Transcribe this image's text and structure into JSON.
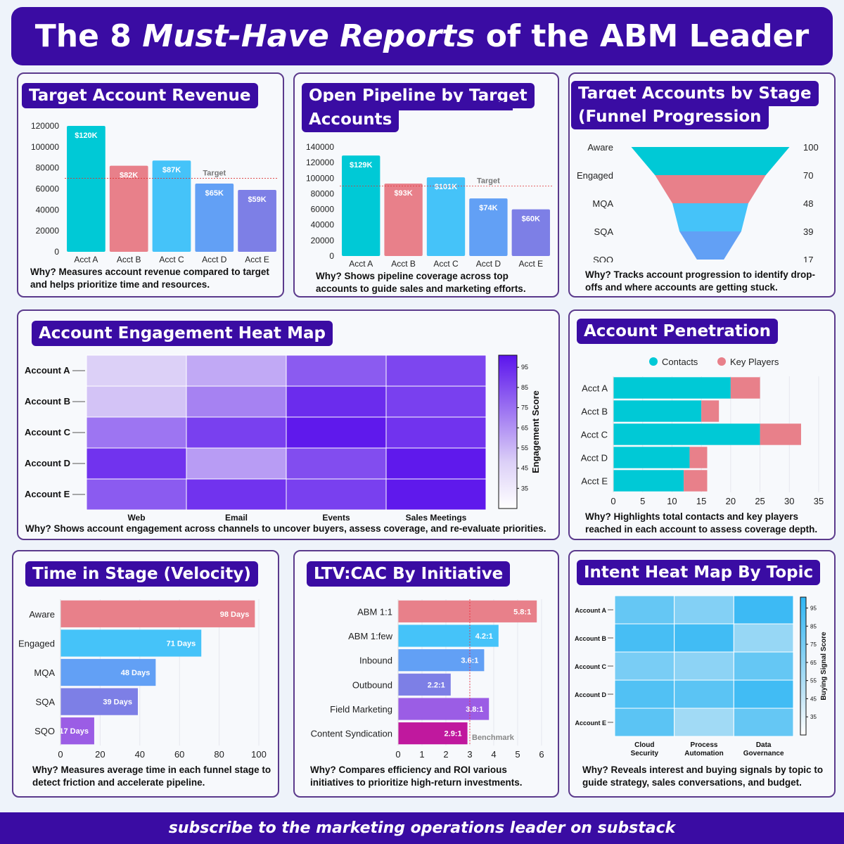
{
  "header": {
    "title_pre": "The 8 ",
    "title_em": "Must-Have Reports",
    "title_post": " of the ABM Leader"
  },
  "footer": {
    "text": "subscribe to the marketing operations leader on substack"
  },
  "colors": {
    "brand": "#3a0ca3",
    "teal": "#00c9d6",
    "pink": "#e8808a",
    "sky": "#45c3f9",
    "blue": "#62a0f5",
    "periwinkle": "#7d7fe6",
    "purple": "#9b5de5",
    "magenta": "#c0189e"
  },
  "panels": {
    "revenue": {
      "title": "Target Account Revenue",
      "why": "Why? Measures account revenue compared to target and helps prioritize time and resources."
    },
    "pipeline": {
      "title_line1": "Open Pipeline by Target",
      "title_line2": "Accounts",
      "why": "Why? Shows pipeline coverage across top accounts to guide sales and marketing efforts."
    },
    "funnel": {
      "title_line1": "Target Accounts by Stage",
      "title_line2": "(Funnel Progression",
      "why": "Why? Tracks account progression to identify drop-offs and where accounts are getting stuck."
    },
    "engagement": {
      "title": "Account Engagement Heat Map",
      "why": "Why? Shows account engagement across channels to uncover buyers, assess coverage, and re-evaluate priorities."
    },
    "penetration": {
      "title": "Account Penetration",
      "why": "Why? Highlights total contacts and key players reached in each account to assess coverage depth."
    },
    "velocity": {
      "title": "Time in Stage (Velocity)",
      "why": "Why? Measures average time in each funnel stage to detect friction and accelerate pipeline."
    },
    "ltvcac": {
      "title": "LTV:CAC By Initiative",
      "why": "Why? Compares efficiency and ROI various initiatives to prioritize high-return investments."
    },
    "intent": {
      "title": "Intent Heat Map By Topic",
      "why": "Why? Reveals interest and buying signals by topic to guide strategy, sales conversations, and budget."
    }
  },
  "chart_data": [
    {
      "id": "revenue",
      "type": "bar",
      "categories": [
        "Acct A",
        "Acct B",
        "Acct C",
        "Acct D",
        "Acct E"
      ],
      "values": [
        120000,
        82000,
        87000,
        65000,
        59000
      ],
      "data_labels": [
        "$120K",
        "$82K",
        "$87K",
        "$65K",
        "$59K"
      ],
      "colors": [
        "#00c9d6",
        "#e8808a",
        "#45c3f9",
        "#62a0f5",
        "#7d7fe6"
      ],
      "ylim": [
        0,
        120000
      ],
      "yticks": [
        0,
        20000,
        40000,
        60000,
        80000,
        100000,
        120000
      ],
      "target": 70000,
      "target_label": "Target"
    },
    {
      "id": "pipeline",
      "type": "bar",
      "categories": [
        "Acct A",
        "Acct B",
        "Acct C",
        "Acct D",
        "Acct E"
      ],
      "values": [
        129000,
        93000,
        101000,
        74000,
        60000
      ],
      "data_labels": [
        "$129K",
        "$93K",
        "$101K",
        "$74K",
        "$60K"
      ],
      "colors": [
        "#00c9d6",
        "#e8808a",
        "#45c3f9",
        "#62a0f5",
        "#7d7fe6"
      ],
      "ylim": [
        0,
        140000
      ],
      "yticks": [
        0,
        20000,
        40000,
        60000,
        80000,
        100000,
        120000,
        140000
      ],
      "target": 90000,
      "target_label": "Target"
    },
    {
      "id": "funnel",
      "type": "funnel",
      "stages": [
        "Aware",
        "Engaged",
        "MQA",
        "SQA",
        "SQO"
      ],
      "values": [
        100,
        70,
        48,
        39,
        17
      ],
      "colors": [
        "#00c9d6",
        "#e8808a",
        "#45c3f9",
        "#62a0f5"
      ]
    },
    {
      "id": "engagement",
      "type": "heatmap",
      "rows": [
        "Account A",
        "Account B",
        "Account C",
        "Account D",
        "Account E"
      ],
      "columns": [
        "Web",
        "Email",
        "Events",
        "Sales Meetings"
      ],
      "values": [
        [
          25,
          40,
          70,
          78
        ],
        [
          30,
          55,
          88,
          80
        ],
        [
          60,
          80,
          95,
          85
        ],
        [
          85,
          45,
          75,
          95
        ],
        [
          70,
          85,
          80,
          95
        ]
      ],
      "scale_ticks": [
        95,
        85,
        75,
        65,
        55,
        45,
        35
      ],
      "scale_label": "Engagement Score"
    },
    {
      "id": "penetration",
      "type": "bar",
      "orientation": "horizontal",
      "stacked": true,
      "categories": [
        "Acct A",
        "Acct B",
        "Acct C",
        "Acct D",
        "Acct E"
      ],
      "series": [
        {
          "name": "Contacts",
          "values": [
            20,
            15,
            25,
            13,
            12
          ],
          "color": "#00c9d6"
        },
        {
          "name": "Key Players",
          "values": [
            5,
            3,
            7,
            3,
            4
          ],
          "color": "#e8808a"
        }
      ],
      "xlim": [
        0,
        35
      ],
      "xticks": [
        0,
        5,
        10,
        15,
        20,
        25,
        30,
        35
      ]
    },
    {
      "id": "velocity",
      "type": "bar",
      "orientation": "horizontal",
      "categories": [
        "Aware",
        "Engaged",
        "MQA",
        "SQA",
        "SQO"
      ],
      "values": [
        98,
        71,
        48,
        39,
        17
      ],
      "data_labels": [
        "98 Days",
        "71 Days",
        "48 Days",
        "39 Days",
        "17 Days"
      ],
      "colors": [
        "#e8808a",
        "#45c3f9",
        "#62a0f5",
        "#7d7fe6",
        "#9b5de5"
      ],
      "xlim": [
        0,
        100
      ],
      "xticks": [
        0,
        20,
        40,
        60,
        80,
        100
      ]
    },
    {
      "id": "ltvcac",
      "type": "bar",
      "orientation": "horizontal",
      "categories": [
        "ABM 1:1",
        "ABM 1:few",
        "Inbound",
        "Outbound",
        "Field Marketing",
        "Content Syndication"
      ],
      "values": [
        5.8,
        4.2,
        3.6,
        2.2,
        3.8,
        2.9
      ],
      "data_labels": [
        "5.8:1",
        "4.2:1",
        "3.6:1",
        "2.2:1",
        "3.8:1",
        "2.9:1"
      ],
      "colors": [
        "#e8808a",
        "#45c3f9",
        "#62a0f5",
        "#7d7fe6",
        "#9b5de5",
        "#c0189e"
      ],
      "xlim": [
        0,
        6
      ],
      "xticks": [
        0,
        1,
        2,
        3,
        4,
        5,
        6
      ],
      "benchmark": 3,
      "benchmark_label": "Benchmark"
    },
    {
      "id": "intent",
      "type": "heatmap",
      "rows": [
        "Account A",
        "Account B",
        "Account C",
        "Account D",
        "Account E"
      ],
      "columns": [
        [
          "Cloud",
          "Security"
        ],
        [
          "Process",
          "Automation"
        ],
        [
          "Data",
          "Governance"
        ]
      ],
      "values": [
        [
          70,
          55,
          90
        ],
        [
          85,
          88,
          45
        ],
        [
          60,
          50,
          70
        ],
        [
          80,
          75,
          88
        ],
        [
          75,
          40,
          70
        ]
      ],
      "scale_ticks": [
        95,
        85,
        75,
        65,
        55,
        45,
        35
      ],
      "scale_label": "Buying Signal Score"
    }
  ]
}
